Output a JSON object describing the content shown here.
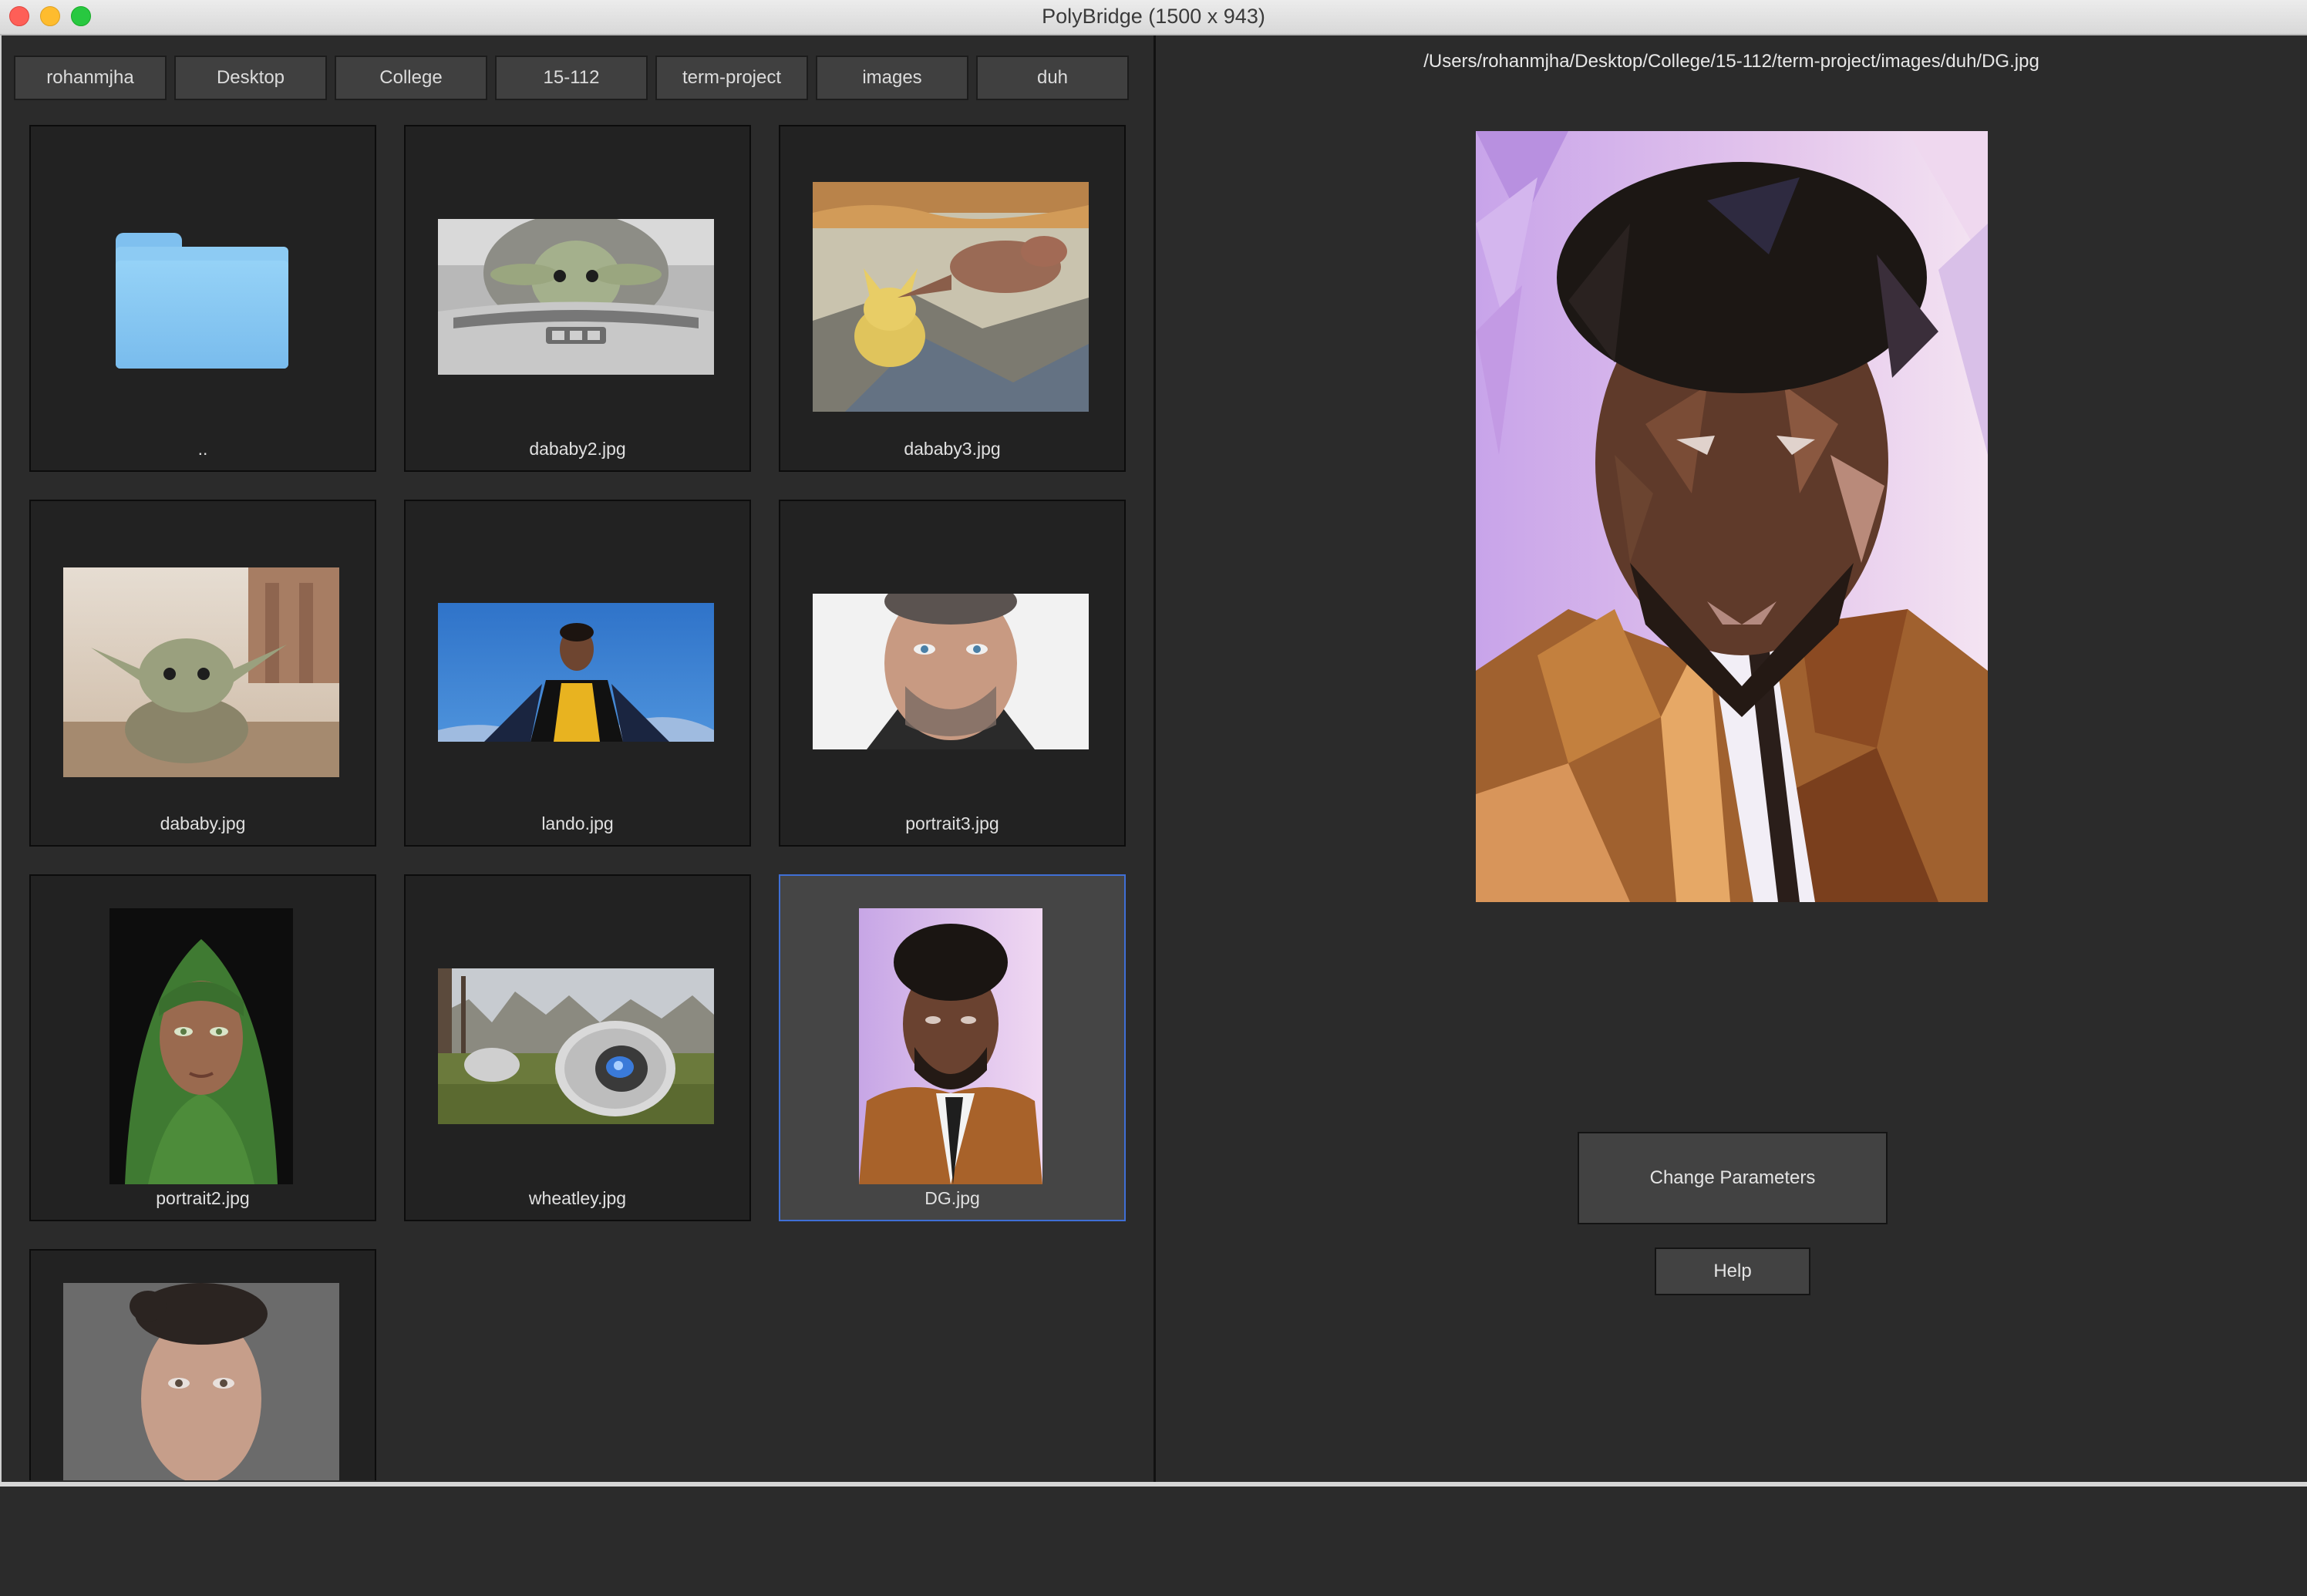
{
  "window": {
    "title": "PolyBridge (1500 x 943)"
  },
  "breadcrumb": [
    "rohanmjha",
    "Desktop",
    "College",
    "15-112",
    "term-project",
    "images",
    "duh"
  ],
  "files": [
    {
      "label": "..",
      "kind": "folder"
    },
    {
      "label": "dababy2.jpg",
      "kind": "image"
    },
    {
      "label": "dababy3.jpg",
      "kind": "image"
    },
    {
      "label": "dababy.jpg",
      "kind": "image"
    },
    {
      "label": "lando.jpg",
      "kind": "image"
    },
    {
      "label": "portrait3.jpg",
      "kind": "image"
    },
    {
      "label": "portrait2.jpg",
      "kind": "image"
    },
    {
      "label": "wheatley.jpg",
      "kind": "image"
    },
    {
      "label": "DG.jpg",
      "kind": "image",
      "selected": true
    },
    {
      "label": "",
      "kind": "image"
    }
  ],
  "preview": {
    "path": "/Users/rohanmjha/Desktop/College/15-112/term-project/images/duh/DG.jpg"
  },
  "buttons": {
    "change_parameters": "Change Parameters",
    "help": "Help"
  },
  "colors": {
    "selection": "#3f6fd6",
    "folder": "#8dcbf3"
  },
  "icons": {
    "folder": "folder-icon",
    "close": "close-window-icon",
    "minimize": "minimize-window-icon",
    "maximize": "maximize-window-icon"
  }
}
